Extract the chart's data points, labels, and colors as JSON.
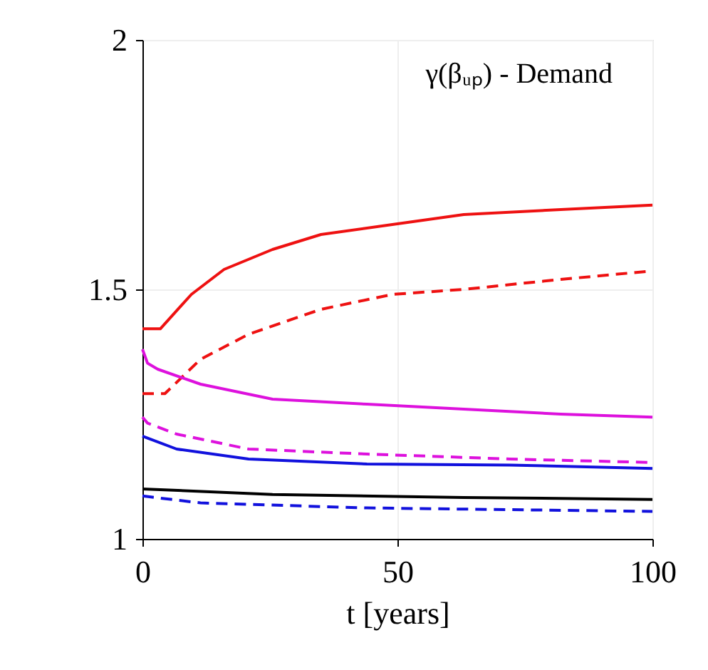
{
  "chart_data": {
    "type": "line",
    "xlabel": "t [years]",
    "xlim": [
      0,
      100
    ],
    "xticks": [
      0,
      50,
      100
    ],
    "ylim": [
      1,
      2
    ],
    "yticks": [
      1,
      1.5,
      2
    ],
    "grid": true,
    "marker": "none",
    "annotations": [
      "γ(βᵤₚ) - Demand"
    ],
    "series": [
      {
        "color": "#ee1111",
        "line_style": "solid",
        "x": [
          0,
          3.5,
          9.6,
          16,
          25.5,
          35,
          49,
          63,
          82,
          100
        ],
        "values": [
          1.421,
          1.421,
          1.49,
          1.54,
          1.58,
          1.61,
          1.63,
          1.65,
          1.66,
          1.669
        ]
      },
      {
        "color": "#ee1111",
        "line_style": "dashed",
        "x": [
          0,
          4.4,
          11.4,
          20.8,
          35,
          49,
          63,
          82,
          100
        ],
        "values": [
          1.291,
          1.291,
          1.36,
          1.41,
          1.46,
          1.49,
          1.5,
          1.52,
          1.537
        ]
      },
      {
        "color": "#dd11dd",
        "line_style": "solid",
        "x": [
          0,
          1,
          3,
          11.4,
          25.5,
          44,
          63,
          82,
          100
        ],
        "values": [
          1.38,
          1.352,
          1.34,
          1.31,
          1.28,
          1.27,
          1.26,
          1.25,
          1.244
        ]
      },
      {
        "color": "#dd11dd",
        "line_style": "dashed",
        "x": [
          0,
          1,
          6.7,
          20.8,
          44,
          72,
          100
        ],
        "values": [
          1.244,
          1.232,
          1.21,
          1.18,
          1.17,
          1.16,
          1.153
        ]
      },
      {
        "color": "#1111dd",
        "line_style": "solid",
        "x": [
          0,
          1,
          6.7,
          20.8,
          44,
          72,
          100
        ],
        "values": [
          1.206,
          1.202,
          1.18,
          1.16,
          1.15,
          1.148,
          1.141
        ]
      },
      {
        "color": "#000000",
        "line_style": "solid",
        "x": [
          0,
          25.5,
          63,
          100
        ],
        "values": [
          1.1,
          1.089,
          1.083,
          1.079
        ]
      },
      {
        "color": "#1111dd",
        "line_style": "dashed",
        "x": [
          0,
          11.4,
          44,
          100
        ],
        "values": [
          1.086,
          1.072,
          1.062,
          1.055
        ]
      }
    ]
  }
}
